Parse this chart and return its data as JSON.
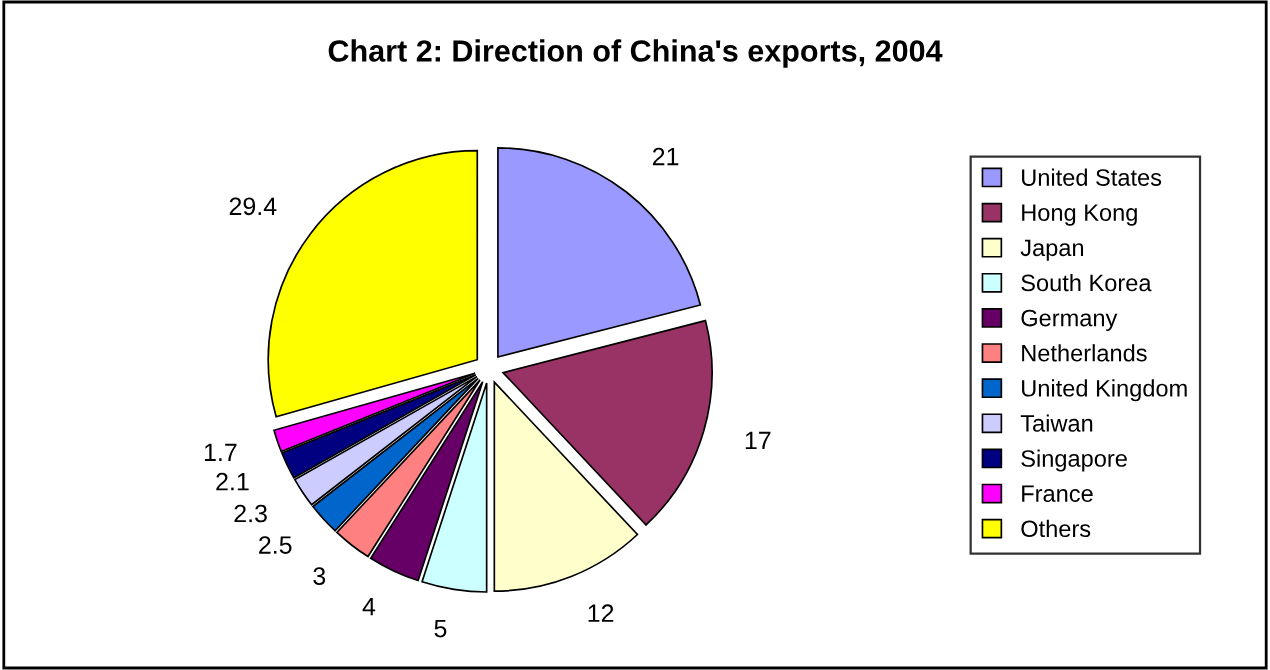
{
  "chart_data": {
    "type": "pie",
    "title": "Chart 2: Direction of China's exports, 2004",
    "categories": [
      "United States",
      "Hong Kong",
      "Japan",
      "South Korea",
      "Germany",
      "Netherlands",
      "United Kingdom",
      "Taiwan",
      "Singapore",
      "France",
      "Others"
    ],
    "values": [
      21,
      17,
      12,
      5,
      4,
      3,
      2.5,
      2.3,
      2.1,
      1.7,
      29.4
    ],
    "colors": [
      "#9999ff",
      "#993366",
      "#ffffcc",
      "#ccffff",
      "#660066",
      "#ff8080",
      "#0066cc",
      "#ccccff",
      "#000080",
      "#ff00ff",
      "#ffff00"
    ],
    "data_labels": true,
    "legend": "right"
  }
}
